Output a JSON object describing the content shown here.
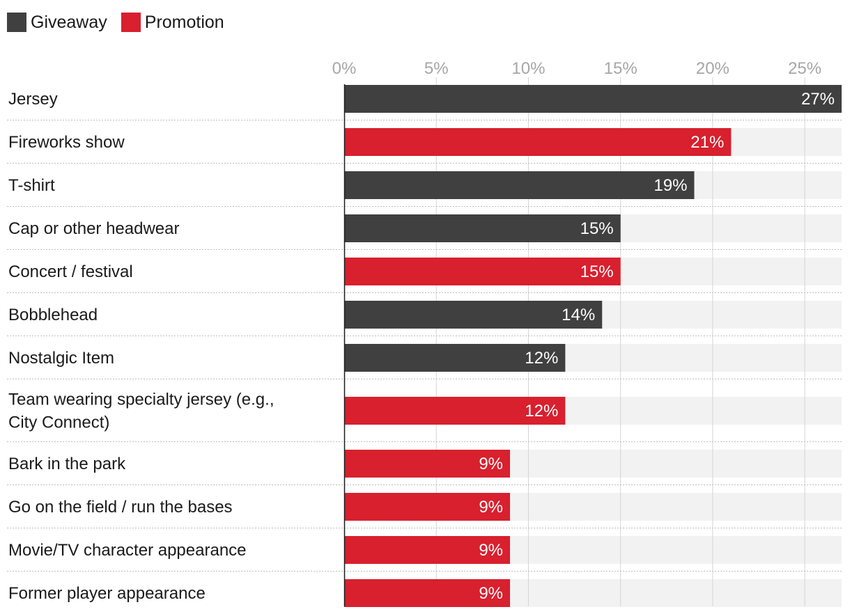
{
  "chart_data": {
    "type": "bar",
    "orientation": "horizontal",
    "title": "",
    "xlabel": "",
    "ylabel": "",
    "xlim": [
      0,
      27
    ],
    "ticks": [
      0,
      5,
      10,
      15,
      20,
      25
    ],
    "tick_labels": [
      "0%",
      "5%",
      "10%",
      "15%",
      "20%",
      "25%"
    ],
    "series": [
      {
        "name": "Giveaway",
        "color": "#404041"
      },
      {
        "name": "Promotion",
        "color": "#d8202e"
      }
    ],
    "categories": [
      [
        "Jersey"
      ],
      [
        "Fireworks show"
      ],
      [
        "T-shirt"
      ],
      [
        "Cap or other headwear"
      ],
      [
        "Concert / festival"
      ],
      [
        "Bobblehead"
      ],
      [
        "Nostalgic Item"
      ],
      [
        "Team wearing specialty jersey (e.g.,",
        "City Connect)"
      ],
      [
        "Bark in the park"
      ],
      [
        "Go on the field / run the bases"
      ],
      [
        "Movie/TV character appearance"
      ],
      [
        "Former player appearance"
      ]
    ],
    "values": [
      27,
      21,
      19,
      15,
      15,
      14,
      12,
      12,
      9,
      9,
      9,
      9
    ],
    "value_labels": [
      "27%",
      "21%",
      "19%",
      "15%",
      "15%",
      "14%",
      "12%",
      "12%",
      "9%",
      "9%",
      "9%",
      "9%"
    ],
    "bar_series": [
      "Giveaway",
      "Promotion",
      "Giveaway",
      "Giveaway",
      "Promotion",
      "Giveaway",
      "Giveaway",
      "Promotion",
      "Promotion",
      "Promotion",
      "Promotion",
      "Promotion"
    ],
    "legend_position": "top-left",
    "grid": true
  }
}
